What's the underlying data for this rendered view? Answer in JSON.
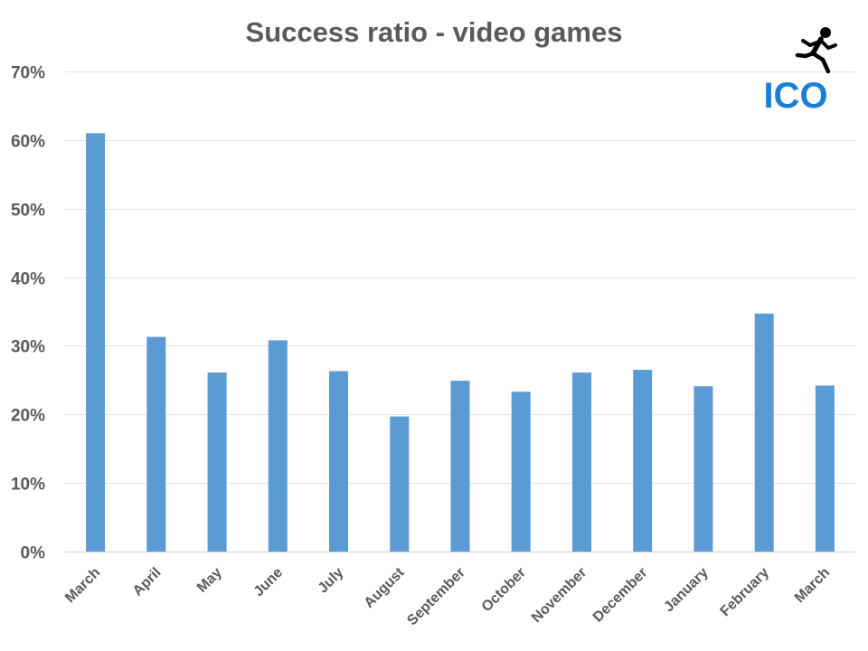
{
  "chart_data": {
    "type": "bar",
    "title": "Success ratio - video games",
    "categories": [
      "March",
      "April",
      "May",
      "June",
      "July",
      "August",
      "September",
      "October",
      "November",
      "December",
      "January",
      "February",
      "March"
    ],
    "values": [
      0.61,
      0.313,
      0.261,
      0.308,
      0.263,
      0.197,
      0.249,
      0.233,
      0.261,
      0.265,
      0.241,
      0.347,
      0.242
    ],
    "ylim": [
      0,
      0.7
    ],
    "yticks": [
      0,
      0.1,
      0.2,
      0.3,
      0.4,
      0.5,
      0.6,
      0.7
    ],
    "ytick_labels": [
      "0%",
      "10%",
      "20%",
      "30%",
      "40%",
      "50%",
      "60%",
      "70%"
    ],
    "xlabel": "",
    "ylabel": "",
    "grid": true,
    "legend": "none",
    "bar_color": "#5b9bd5"
  },
  "logo": {
    "text": "ICO",
    "color": "#1a7fd4",
    "icon": "running-person-icon",
    "icon_color": "#000000"
  }
}
